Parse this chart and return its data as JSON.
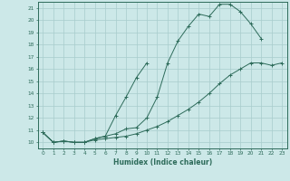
{
  "xlabel": "Humidex (Indice chaleur)",
  "ylabel": "",
  "background_color": "#cce8e8",
  "line_color": "#2d6b5a",
  "grid_color": "#a8cccc",
  "xlim": [
    -0.5,
    23.5
  ],
  "ylim": [
    9.5,
    21.5
  ],
  "xtick_labels": [
    "0",
    "1",
    "2",
    "3",
    "4",
    "5",
    "6",
    "7",
    "8",
    "9",
    "10",
    "11",
    "12",
    "13",
    "14",
    "15",
    "16",
    "17",
    "18",
    "19",
    "20",
    "21",
    "22",
    "23"
  ],
  "ytick_labels": [
    "10",
    "11",
    "12",
    "13",
    "14",
    "15",
    "16",
    "17",
    "18",
    "19",
    "20",
    "21"
  ],
  "series": [
    {
      "x": [
        0,
        1,
        2,
        3,
        4,
        5,
        6,
        7,
        8,
        9,
        10,
        11,
        12,
        13,
        14,
        15,
        16,
        17,
        18,
        19,
        20,
        21
      ],
      "y": [
        10.8,
        10.0,
        10.1,
        10.0,
        10.0,
        10.3,
        10.5,
        10.7,
        11.1,
        11.2,
        12.0,
        13.7,
        16.5,
        18.3,
        19.5,
        20.5,
        20.3,
        21.3,
        21.3,
        20.7,
        19.7,
        18.5
      ]
    },
    {
      "x": [
        0,
        1,
        2,
        3,
        4,
        5,
        6,
        7,
        8,
        9,
        10
      ],
      "y": [
        10.8,
        10.0,
        10.1,
        10.0,
        10.0,
        10.3,
        10.5,
        12.2,
        13.7,
        15.3,
        16.5
      ]
    },
    {
      "x": [
        0,
        1,
        2,
        3,
        4,
        5,
        6,
        7,
        8,
        9,
        10,
        11,
        12,
        13,
        14,
        15,
        16,
        17,
        18,
        19,
        20,
        21,
        22,
        23
      ],
      "y": [
        10.8,
        10.0,
        10.1,
        10.0,
        10.0,
        10.2,
        10.3,
        10.4,
        10.5,
        10.7,
        11.0,
        11.3,
        11.7,
        12.2,
        12.7,
        13.3,
        14.0,
        14.8,
        15.5,
        16.0,
        16.5,
        16.5,
        16.3,
        16.5
      ]
    }
  ]
}
